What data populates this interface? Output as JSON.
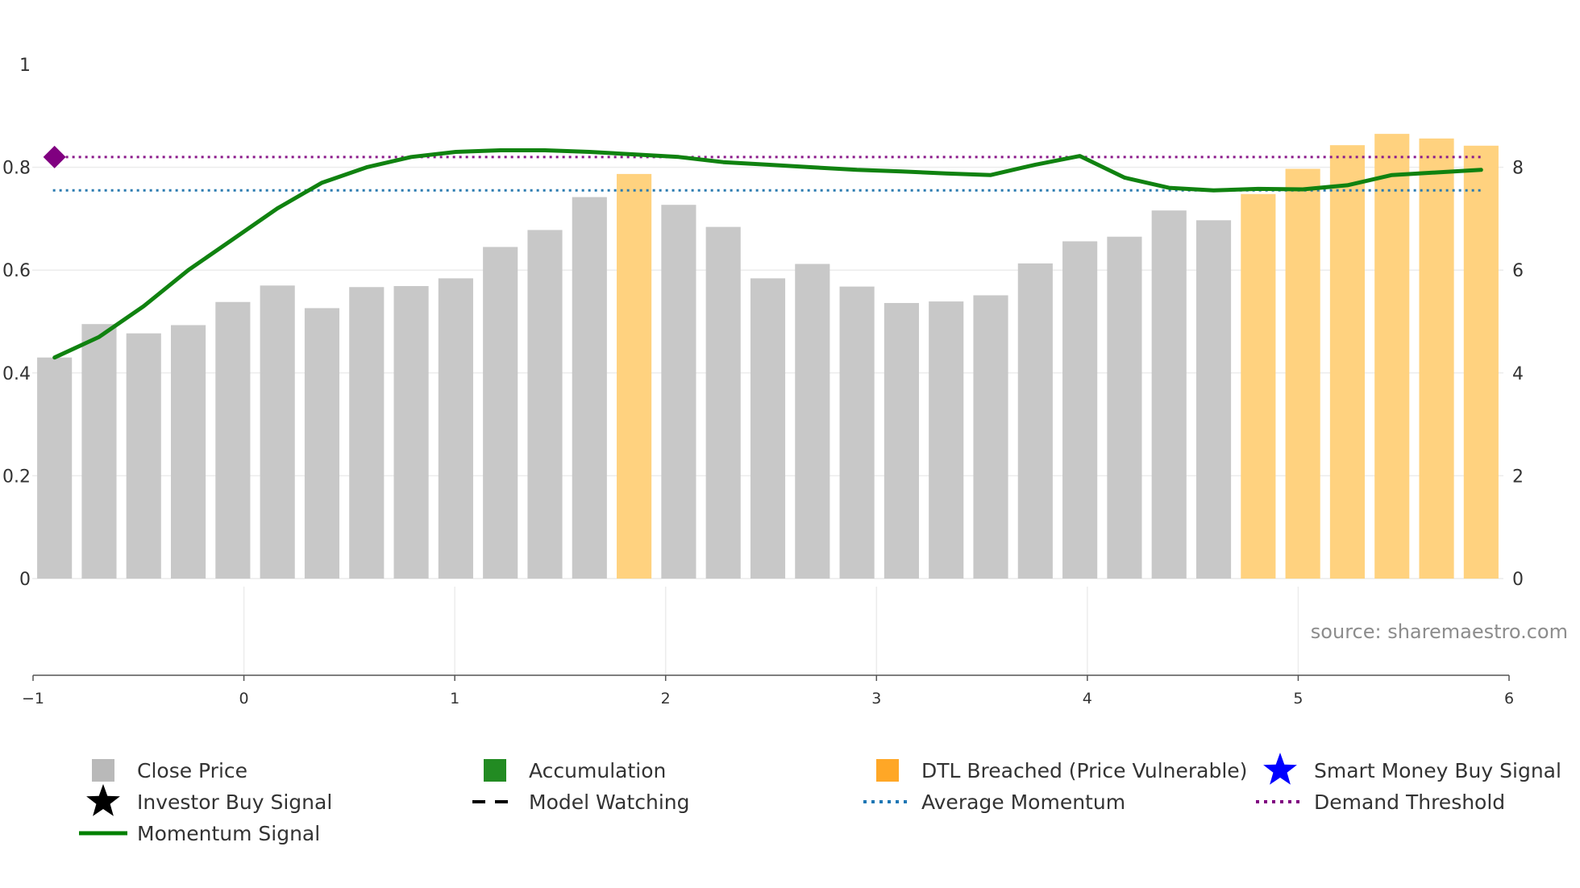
{
  "chart_data": {
    "type": "bar",
    "source": "source: sharemaestro.com",
    "left_axis": {
      "ylim": [
        0,
        1
      ],
      "ticks": [
        "0",
        "0.2",
        "0.4",
        "0.6",
        "0.8",
        "1"
      ]
    },
    "right_axis": {
      "ylim": [
        0,
        10
      ],
      "ticks": [
        "0",
        "2",
        "4",
        "6",
        "8"
      ]
    },
    "lower_axis": {
      "xlim": [
        -1,
        6
      ],
      "ticks": [
        "−1",
        "0",
        "1",
        "2",
        "3",
        "4",
        "5",
        "6"
      ]
    },
    "bars": {
      "name": "Close Price",
      "axis": "right",
      "values": [
        4.3,
        4.95,
        4.77,
        4.93,
        5.38,
        5.7,
        5.26,
        5.67,
        5.69,
        5.84,
        6.45,
        6.78,
        7.42,
        7.87,
        7.27,
        6.84,
        5.84,
        6.12,
        5.68,
        5.36,
        5.39,
        5.51,
        6.13,
        6.56,
        6.65,
        7.16,
        6.97,
        7.48,
        7.97,
        8.43,
        8.65,
        8.56,
        8.42
      ],
      "dtl_breached": [
        false,
        false,
        false,
        false,
        false,
        false,
        false,
        false,
        false,
        false,
        false,
        false,
        false,
        true,
        false,
        false,
        false,
        false,
        false,
        false,
        false,
        false,
        false,
        false,
        false,
        false,
        false,
        true,
        true,
        true,
        true,
        true,
        true
      ]
    },
    "momentum_signal": {
      "name": "Momentum Signal",
      "axis": "left",
      "values": [
        0.43,
        0.47,
        0.53,
        0.6,
        0.66,
        0.72,
        0.77,
        0.8,
        0.82,
        0.83,
        0.833,
        0.833,
        0.83,
        0.825,
        0.82,
        0.81,
        0.805,
        0.8,
        0.795,
        0.792,
        0.788,
        0.785,
        0.805,
        0.822,
        0.78,
        0.76,
        0.755,
        0.758,
        0.757,
        0.765,
        0.785,
        0.79,
        0.795
      ]
    },
    "average_momentum": {
      "name": "Average Momentum",
      "value": 0.755
    },
    "demand_threshold": {
      "name": "Demand Threshold",
      "value": 0.82
    },
    "marker": {
      "shape": "diamond",
      "color": "#800080",
      "value": 0.82
    },
    "legend": [
      {
        "label": "Close Price",
        "kind": "square",
        "color": "#b9b9b9"
      },
      {
        "label": "Accumulation",
        "kind": "square",
        "color": "#228b22"
      },
      {
        "label": "DTL Breached (Price Vulnerable)",
        "kind": "square",
        "color": "#ffa726"
      },
      {
        "label": "Smart Money Buy Signal",
        "kind": "star",
        "color": "#0000ff"
      },
      {
        "label": "Investor Buy Signal",
        "kind": "star",
        "color": "#000000"
      },
      {
        "label": "Model Watching",
        "kind": "dash",
        "color": "#000000"
      },
      {
        "label": "Average Momentum",
        "kind": "dot",
        "color": "#1f77b4"
      },
      {
        "label": "Demand Threshold",
        "kind": "dot",
        "color": "#800080"
      },
      {
        "label": "Momentum Signal",
        "kind": "line",
        "color": "#008000"
      }
    ],
    "colors": {
      "bar": "#c8c8c8",
      "bar_breached": "#ffd27f",
      "momentum": "#108210",
      "average": "#2b7bb0",
      "threshold": "#8b1a8b"
    }
  }
}
